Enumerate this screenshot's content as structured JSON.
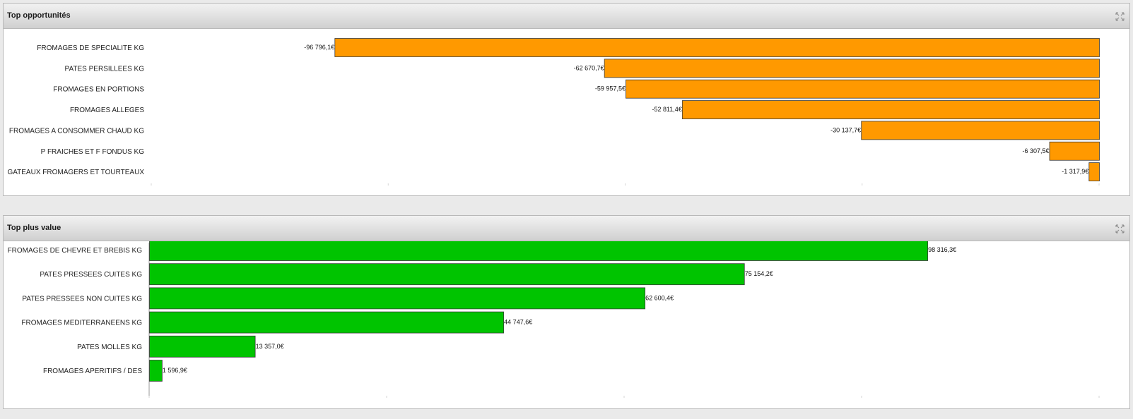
{
  "panels": [
    {
      "title": "Top opportunités",
      "expand_icon": "expand-arrows-icon",
      "chart_data": {
        "type": "bar",
        "orientation": "horizontal",
        "categories": [
          "FROMAGES DE SPECIALITE KG",
          "PATES PERSILLEES KG",
          "FROMAGES EN PORTIONS",
          "FROMAGES ALLEGES",
          "FROMAGES A CONSOMMER CHAUD KG",
          "P FRAICHES ET F FONDUS KG",
          "GATEAUX FROMAGERS ET TOURTEAUX"
        ],
        "values": [
          -96796.1,
          -62670.7,
          -59957.5,
          -52811.4,
          -30137.7,
          -6307.5,
          -1317.9
        ],
        "value_labels": [
          "-96 796,1€",
          "-62 670,7€",
          "-59 957,5€",
          "-52 811,4€",
          "-30 137,7€",
          "-6 307,5€",
          "-1 317,9€"
        ],
        "xlim": [
          -120000,
          0
        ],
        "color": "#ff9900",
        "grid": false
      }
    },
    {
      "title": "Top plus value",
      "expand_icon": "expand-arrows-icon",
      "chart_data": {
        "type": "bar",
        "orientation": "horizontal",
        "categories": [
          "FROMAGES DE CHEVRE ET BREBIS KG",
          "PATES PRESSEES CUITES KG",
          "PATES PRESSEES NON CUITES KG",
          "FROMAGES MEDITERRANEENS KG",
          "PATES MOLLES KG",
          "FROMAGES APERITIFS / DES"
        ],
        "values": [
          98316.3,
          75154.2,
          62600.4,
          44747.6,
          13357.0,
          1596.9
        ],
        "value_labels": [
          "98 316,3€",
          "75 154,2€",
          "62 600,4€",
          "44 747,6€",
          "13 357,0€",
          "1 596,9€"
        ],
        "xlim": [
          0,
          120000
        ],
        "color": "#00c400",
        "grid": false
      }
    }
  ]
}
